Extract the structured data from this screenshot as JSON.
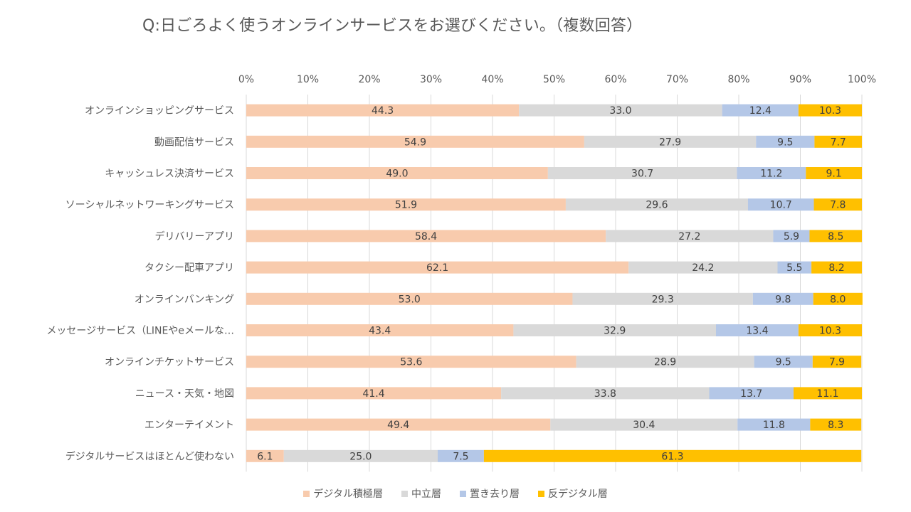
{
  "chart_data": {
    "type": "bar",
    "orientation": "horizontal",
    "stacked": "percent",
    "title": "Q:日ごろよく使うオンラインサービスをお選びください。（複数回答）",
    "categories": [
      "オンラインショッピングサービス",
      "動画配信サービス",
      "キャッシュレス決済サービス",
      "ソーシャルネットワーキングサービス",
      "デリバリーアプリ",
      "タクシー配車アプリ",
      "オンラインバンキング",
      "メッセージサービス（LINEやeメールな…",
      "オンラインチケットサービス",
      "ニュース・天気・地図",
      "エンターテイメント",
      "デジタルサービスはほとんど使わない"
    ],
    "series": [
      {
        "name": "デジタル積極層",
        "color": "#F8CBAD",
        "values": [
          44.3,
          54.9,
          49.0,
          51.9,
          58.4,
          62.1,
          53.0,
          43.4,
          53.6,
          41.4,
          49.4,
          6.1
        ]
      },
      {
        "name": "中立層",
        "color": "#D9D9D9",
        "values": [
          33.0,
          27.9,
          30.7,
          29.6,
          27.2,
          24.2,
          29.3,
          32.9,
          28.9,
          33.8,
          30.4,
          25.0
        ]
      },
      {
        "name": "置き去り層",
        "color": "#B4C7E7",
        "values": [
          12.4,
          9.5,
          11.2,
          10.7,
          5.9,
          5.5,
          9.8,
          13.4,
          9.5,
          13.7,
          11.8,
          7.5
        ]
      },
      {
        "name": "反デジタル層",
        "color": "#FFC000",
        "values": [
          10.3,
          7.7,
          9.1,
          7.8,
          8.5,
          8.2,
          8.0,
          10.3,
          7.9,
          11.1,
          8.3,
          61.3
        ]
      }
    ],
    "value_labels": [
      [
        "44.3",
        "33.0",
        "12.4",
        "10.3"
      ],
      [
        "54.9",
        "27.9",
        "9.5",
        "7.7"
      ],
      [
        "49.0",
        "30.7",
        "11.2",
        "9.1"
      ],
      [
        "51.9",
        "29.6",
        "10.7",
        "7.8"
      ],
      [
        "58.4",
        "27.2",
        "5.9",
        "8.5"
      ],
      [
        "62.1",
        "24.2",
        "5.5",
        "8.2"
      ],
      [
        "53.0",
        "29.3",
        "9.8",
        "8.0"
      ],
      [
        "43.4",
        "32.9",
        "13.4",
        "10.3"
      ],
      [
        "53.6",
        "28.9",
        "9.5",
        "7.9"
      ],
      [
        "41.4",
        "33.8",
        "13.7",
        "11.1"
      ],
      [
        "49.4",
        "30.4",
        "11.8",
        "8.3"
      ],
      [
        "6.1",
        "25.0",
        "7.5",
        "61.3"
      ]
    ],
    "xlim": [
      0,
      100
    ],
    "xticks": [
      "0%",
      "10%",
      "20%",
      "30%",
      "40%",
      "50%",
      "60%",
      "70%",
      "80%",
      "90%",
      "100%"
    ],
    "grid": true,
    "axis_position": "top",
    "legend_position": "bottom"
  }
}
